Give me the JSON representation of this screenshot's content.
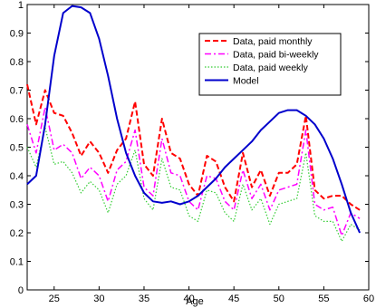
{
  "chart_data": {
    "type": "line",
    "title": "",
    "xlabel": "Age",
    "ylabel": "",
    "xlim": [
      22,
      60
    ],
    "ylim": [
      0,
      1
    ],
    "grid": false,
    "legend_position": "top-right",
    "x_ticks": [
      "25",
      "30",
      "35",
      "40",
      "45",
      "50",
      "55",
      "60"
    ],
    "y_ticks": [
      "0",
      "0.1",
      "0.2",
      "0.3",
      "0.4",
      "0.5",
      "0.6",
      "0.7",
      "0.8",
      "0.9",
      "1"
    ],
    "series": [
      {
        "name": "Data, paid monthly",
        "color": "#ff0000",
        "style": "dashed",
        "x": [
          22,
          23,
          24,
          25,
          26,
          27,
          28,
          29,
          30,
          31,
          32,
          33,
          34,
          35,
          36,
          37,
          38,
          39,
          40,
          41,
          42,
          43,
          44,
          45,
          46,
          47,
          48,
          49,
          50,
          51,
          52,
          53,
          54,
          55,
          56,
          57,
          58,
          59
        ],
        "y": [
          0.72,
          0.58,
          0.7,
          0.62,
          0.61,
          0.55,
          0.47,
          0.52,
          0.48,
          0.41,
          0.49,
          0.53,
          0.66,
          0.44,
          0.4,
          0.6,
          0.48,
          0.46,
          0.37,
          0.33,
          0.47,
          0.45,
          0.36,
          0.31,
          0.48,
          0.36,
          0.42,
          0.33,
          0.41,
          0.41,
          0.44,
          0.61,
          0.35,
          0.32,
          0.33,
          0.33,
          0.3,
          0.28
        ]
      },
      {
        "name": "Data, paid bi-weekly",
        "color": "#ff00ff",
        "style": "dashdot",
        "x": [
          22,
          23,
          24,
          25,
          26,
          27,
          28,
          29,
          30,
          31,
          32,
          33,
          34,
          35,
          36,
          37,
          38,
          39,
          40,
          41,
          42,
          43,
          44,
          45,
          46,
          47,
          48,
          49,
          50,
          51,
          52,
          53,
          54,
          55,
          56,
          57,
          58,
          59
        ],
        "y": [
          0.58,
          0.48,
          0.64,
          0.49,
          0.51,
          0.48,
          0.39,
          0.43,
          0.4,
          0.31,
          0.42,
          0.45,
          0.56,
          0.36,
          0.33,
          0.53,
          0.41,
          0.4,
          0.31,
          0.28,
          0.4,
          0.39,
          0.31,
          0.28,
          0.42,
          0.32,
          0.37,
          0.28,
          0.35,
          0.36,
          0.37,
          0.56,
          0.3,
          0.28,
          0.29,
          0.19,
          0.27,
          0.25
        ]
      },
      {
        "name": "Data, paid weekly",
        "color": "#33cc33",
        "style": "dotted",
        "x": [
          22,
          23,
          24,
          25,
          26,
          27,
          28,
          29,
          30,
          31,
          32,
          33,
          34,
          35,
          36,
          37,
          38,
          39,
          40,
          41,
          42,
          43,
          44,
          45,
          46,
          47,
          48,
          49,
          50,
          51,
          52,
          53,
          54,
          55,
          56,
          57,
          58,
          59
        ],
        "y": [
          0.5,
          0.43,
          0.57,
          0.44,
          0.45,
          0.41,
          0.34,
          0.38,
          0.35,
          0.27,
          0.37,
          0.4,
          0.49,
          0.32,
          0.28,
          0.46,
          0.36,
          0.35,
          0.26,
          0.24,
          0.35,
          0.34,
          0.27,
          0.24,
          0.37,
          0.28,
          0.32,
          0.23,
          0.3,
          0.31,
          0.32,
          0.48,
          0.26,
          0.24,
          0.24,
          0.17,
          0.23,
          0.21
        ]
      },
      {
        "name": "Model",
        "color": "#0000cc",
        "style": "solid",
        "x": [
          22,
          23,
          24,
          25,
          26,
          27,
          28,
          29,
          30,
          31,
          32,
          33,
          34,
          35,
          36,
          37,
          38,
          39,
          40,
          41,
          42,
          43,
          44,
          45,
          46,
          47,
          48,
          49,
          50,
          51,
          52,
          53,
          54,
          55,
          56,
          57,
          58,
          59
        ],
        "y": [
          0.37,
          0.4,
          0.58,
          0.82,
          0.97,
          0.995,
          0.99,
          0.97,
          0.88,
          0.75,
          0.6,
          0.48,
          0.4,
          0.34,
          0.31,
          0.305,
          0.31,
          0.3,
          0.31,
          0.33,
          0.36,
          0.39,
          0.43,
          0.46,
          0.49,
          0.52,
          0.56,
          0.59,
          0.62,
          0.63,
          0.63,
          0.61,
          0.58,
          0.53,
          0.46,
          0.37,
          0.27,
          0.2
        ]
      }
    ]
  }
}
